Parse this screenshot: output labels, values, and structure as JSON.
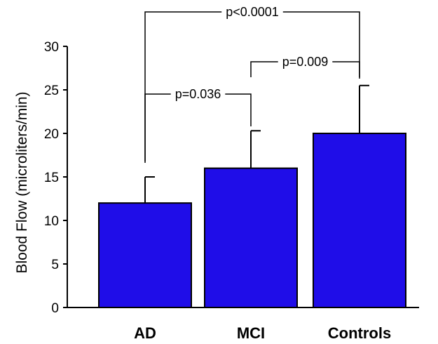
{
  "chart_data": {
    "type": "bar",
    "categories": [
      "AD",
      "MCI",
      "Controls"
    ],
    "values": [
      12,
      16,
      20
    ],
    "error_upper": [
      15,
      20.3,
      25.5
    ],
    "ylabel": "Blood Flow (microliters/min)",
    "xlabel": "",
    "ylim": [
      0,
      30
    ],
    "yticks": [
      0,
      5,
      10,
      15,
      20,
      25,
      30
    ],
    "bar_color": "#1f0de8",
    "grid": false,
    "comparisons": [
      {
        "from": 0,
        "to": 2,
        "label": "p<0.0001"
      },
      {
        "from": 0,
        "to": 1,
        "label": "p=0.036"
      },
      {
        "from": 1,
        "to": 2,
        "label": "p=0.009"
      }
    ]
  }
}
